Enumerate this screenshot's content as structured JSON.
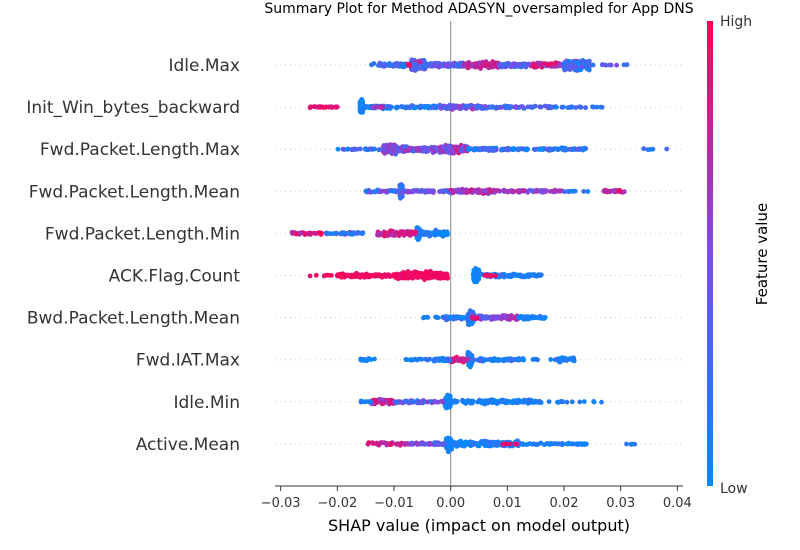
{
  "chart_data": {
    "type": "scatter",
    "title": "Summary Plot for Method ADASYN_oversampled for App DNS",
    "xlabel": "SHAP value (impact on model output)",
    "xlim": [
      -0.031,
      0.041
    ],
    "xticks": [
      -0.03,
      -0.02,
      -0.01,
      0.0,
      0.01,
      0.02,
      0.03,
      0.04
    ],
    "xtick_labels": [
      "−0.03",
      "−0.02",
      "−0.01",
      "0.00",
      "0.01",
      "0.02",
      "0.03",
      "0.04"
    ],
    "colorbar": {
      "title": "Feature value",
      "high_label": "High",
      "low_label": "Low",
      "low_color": "#008bfb",
      "high_color": "#ff0052"
    },
    "features": [
      {
        "name": "Idle.Max",
        "clusters": [
          [
            -0.007,
            -0.0045,
            0.0,
            0.9,
            0.7,
            240
          ],
          [
            -0.0045,
            0.0025,
            0.1,
            0.6,
            0.3,
            130
          ],
          [
            0.0025,
            0.0085,
            0.6,
            0.9,
            0.45,
            110
          ],
          [
            0.0085,
            0.0135,
            0.2,
            0.5,
            0.3,
            70
          ],
          [
            0.0135,
            0.02,
            0.5,
            0.95,
            0.35,
            80
          ],
          [
            0.02,
            0.0245,
            0.0,
            0.5,
            0.7,
            170
          ],
          [
            -0.014,
            -0.0075,
            0.1,
            0.4,
            0.25,
            45
          ],
          [
            0.0245,
            0.0335,
            0.1,
            0.5,
            0.08,
            10
          ],
          [
            -0.0075,
            -0.007,
            0.9,
            1.0,
            0.2,
            6
          ]
        ]
      },
      {
        "name": "Init_Win_bytes_backward",
        "clusters": [
          [
            -0.016,
            -0.0155,
            0.0,
            0.1,
            1.0,
            120
          ],
          [
            -0.025,
            -0.02,
            0.8,
            1.0,
            0.12,
            25
          ],
          [
            -0.0155,
            -0.002,
            0.0,
            0.3,
            0.25,
            90
          ],
          [
            -0.002,
            0.006,
            0.2,
            0.7,
            0.28,
            110
          ],
          [
            0.006,
            0.018,
            0.1,
            0.5,
            0.18,
            60
          ],
          [
            0.018,
            0.027,
            0.0,
            0.3,
            0.12,
            20
          ],
          [
            -0.014,
            -0.012,
            0.5,
            0.9,
            0.08,
            12
          ]
        ]
      },
      {
        "name": "Fwd.Packet.Length.Max",
        "clusters": [
          [
            -0.012,
            -0.0095,
            0.2,
            0.9,
            0.65,
            140
          ],
          [
            -0.0095,
            -0.002,
            0.2,
            0.7,
            0.4,
            120
          ],
          [
            -0.002,
            0.003,
            0.3,
            0.9,
            0.55,
            130
          ],
          [
            0.003,
            0.011,
            0.0,
            0.5,
            0.22,
            80
          ],
          [
            0.011,
            0.024,
            0.0,
            0.4,
            0.18,
            80
          ],
          [
            -0.02,
            -0.012,
            0.0,
            0.4,
            0.12,
            30
          ],
          [
            0.034,
            0.0385,
            0.0,
            0.3,
            0.1,
            5
          ]
        ]
      },
      {
        "name": "Fwd.Packet.Length.Mean",
        "clusters": [
          [
            -0.009,
            -0.0085,
            0.1,
            0.4,
            1.0,
            120
          ],
          [
            -0.015,
            -0.009,
            0.1,
            0.6,
            0.18,
            40
          ],
          [
            -0.0085,
            0.0,
            0.2,
            0.6,
            0.18,
            50
          ],
          [
            0.0,
            0.008,
            0.4,
            0.9,
            0.3,
            120
          ],
          [
            0.008,
            0.02,
            0.3,
            0.8,
            0.18,
            70
          ],
          [
            0.027,
            0.031,
            0.6,
            0.95,
            0.25,
            25
          ],
          [
            0.02,
            0.025,
            0.0,
            0.3,
            0.08,
            8
          ]
        ]
      },
      {
        "name": "Fwd.Packet.Length.Min",
        "clusters": [
          [
            -0.006,
            -0.0055,
            0.0,
            0.2,
            1.0,
            110
          ],
          [
            -0.028,
            -0.017,
            0.6,
            1.0,
            0.18,
            45
          ],
          [
            -0.013,
            -0.006,
            0.6,
            0.95,
            0.38,
            80
          ],
          [
            -0.0055,
            -0.0005,
            0.0,
            0.2,
            0.38,
            70
          ],
          [
            -0.022,
            -0.015,
            0.0,
            0.3,
            0.15,
            25
          ]
        ]
      },
      {
        "name": "ACK.Flag.Count",
        "clusters": [
          [
            0.004,
            0.005,
            0.0,
            0.1,
            1.0,
            110
          ],
          [
            -0.01,
            -0.0005,
            0.9,
            1.0,
            0.55,
            220
          ],
          [
            -0.02,
            -0.01,
            0.9,
            1.0,
            0.3,
            90
          ],
          [
            0.005,
            0.016,
            0.0,
            0.3,
            0.25,
            80
          ],
          [
            -0.025,
            -0.02,
            0.9,
            1.0,
            0.08,
            8
          ],
          [
            0.006,
            0.008,
            0.9,
            1.0,
            0.15,
            10
          ]
        ]
      },
      {
        "name": "Bwd.Packet.Length.Mean",
        "clusters": [
          [
            0.003,
            0.0042,
            0.0,
            0.3,
            1.0,
            110
          ],
          [
            0.0042,
            0.009,
            0.2,
            0.7,
            0.25,
            60
          ],
          [
            0.009,
            0.012,
            0.5,
            0.8,
            0.4,
            40
          ],
          [
            0.012,
            0.017,
            0.0,
            0.2,
            0.22,
            40
          ],
          [
            -0.001,
            0.003,
            0.0,
            0.3,
            0.28,
            30
          ],
          [
            -0.005,
            0.0,
            0.0,
            0.3,
            0.1,
            10
          ],
          [
            0.0035,
            0.005,
            0.85,
            1.0,
            0.15,
            8
          ]
        ]
      },
      {
        "name": "Fwd.IAT.Max",
        "clusters": [
          [
            0.003,
            0.0038,
            0.0,
            0.2,
            1.0,
            110
          ],
          [
            0.0,
            0.003,
            0.65,
            1.0,
            0.3,
            50
          ],
          [
            -0.003,
            0.0,
            0.0,
            0.3,
            0.22,
            50
          ],
          [
            0.0038,
            0.013,
            0.0,
            0.3,
            0.22,
            70
          ],
          [
            0.019,
            0.022,
            0.0,
            0.2,
            0.38,
            30
          ],
          [
            -0.008,
            -0.003,
            0.0,
            0.2,
            0.1,
            15
          ],
          [
            -0.016,
            -0.013,
            0.0,
            0.2,
            0.2,
            15
          ],
          [
            0.013,
            0.019,
            0.0,
            0.2,
            0.08,
            8
          ]
        ]
      },
      {
        "name": "Idle.Min",
        "clusters": [
          [
            -0.001,
            0.0,
            0.0,
            0.1,
            1.0,
            110
          ],
          [
            -0.014,
            -0.01,
            0.55,
            0.95,
            0.4,
            60
          ],
          [
            -0.01,
            -0.001,
            0.1,
            0.7,
            0.22,
            60
          ],
          [
            0.0,
            0.016,
            0.0,
            0.2,
            0.3,
            150
          ],
          [
            0.016,
            0.028,
            0.0,
            0.2,
            0.1,
            15
          ],
          [
            -0.016,
            -0.014,
            0.0,
            0.3,
            0.12,
            8
          ]
        ]
      },
      {
        "name": "Active.Mean",
        "clusters": [
          [
            -0.0008,
            0.0002,
            0.0,
            0.1,
            1.0,
            110
          ],
          [
            -0.008,
            -0.0008,
            0.2,
            0.7,
            0.2,
            50
          ],
          [
            0.0002,
            0.012,
            0.0,
            0.2,
            0.4,
            190
          ],
          [
            -0.015,
            -0.008,
            0.6,
            0.95,
            0.3,
            30
          ],
          [
            0.012,
            0.025,
            0.0,
            0.2,
            0.15,
            50
          ],
          [
            0.031,
            0.0335,
            0.0,
            0.2,
            0.1,
            5
          ],
          [
            0.009,
            0.012,
            0.8,
            1.0,
            0.12,
            6
          ]
        ]
      }
    ]
  }
}
